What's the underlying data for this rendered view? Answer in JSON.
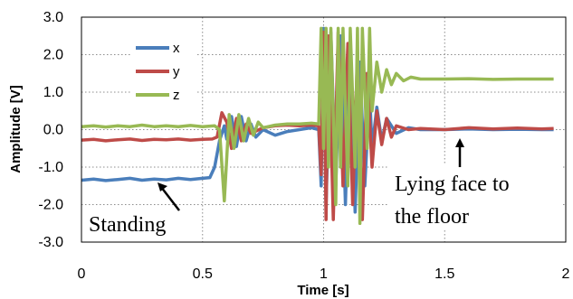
{
  "chart_data": {
    "type": "line",
    "title": "",
    "xlabel": "Time [s]",
    "ylabel": "Amplitude [V]",
    "xlim": [
      0,
      2
    ],
    "ylim": [
      -3,
      3
    ],
    "x_ticks": [
      "0",
      "0.5",
      "1",
      "1.5",
      "2"
    ],
    "y_ticks": [
      "3.0",
      "2.0",
      "1.0",
      "0.0",
      "-1.0",
      "-2.0",
      "-3.0"
    ],
    "grid": "dotted",
    "legend_position": "top-left",
    "series": [
      {
        "name": "x",
        "color": "#4a7ebb",
        "points": [
          [
            0,
            -1.35
          ],
          [
            0.05,
            -1.32
          ],
          [
            0.1,
            -1.36
          ],
          [
            0.15,
            -1.33
          ],
          [
            0.2,
            -1.3
          ],
          [
            0.25,
            -1.35
          ],
          [
            0.3,
            -1.32
          ],
          [
            0.35,
            -1.34
          ],
          [
            0.4,
            -1.3
          ],
          [
            0.45,
            -1.33
          ],
          [
            0.5,
            -1.3
          ],
          [
            0.53,
            -1.28
          ],
          [
            0.55,
            -1.0
          ],
          [
            0.57,
            -0.3
          ],
          [
            0.59,
            0.1
          ],
          [
            0.6,
            -0.25
          ],
          [
            0.62,
            0.35
          ],
          [
            0.64,
            -0.45
          ],
          [
            0.66,
            0.35
          ],
          [
            0.68,
            -0.3
          ],
          [
            0.7,
            0.15
          ],
          [
            0.72,
            -0.2
          ],
          [
            0.75,
            0.0
          ],
          [
            0.8,
            -0.15
          ],
          [
            0.85,
            -0.05
          ],
          [
            0.9,
            0.0
          ],
          [
            0.95,
            0.05
          ],
          [
            0.98,
            0.0
          ],
          [
            0.99,
            -1.5
          ],
          [
            1.0,
            2.7
          ],
          [
            1.01,
            -2.0
          ],
          [
            1.03,
            2.6
          ],
          [
            1.05,
            -1.5
          ],
          [
            1.07,
            2.5
          ],
          [
            1.09,
            -2.0
          ],
          [
            1.11,
            2.4
          ],
          [
            1.13,
            -2.2
          ],
          [
            1.15,
            1.8
          ],
          [
            1.17,
            -1.5
          ],
          [
            1.19,
            1.0
          ],
          [
            1.2,
            -0.5
          ],
          [
            1.22,
            0.6
          ],
          [
            1.24,
            -0.3
          ],
          [
            1.26,
            0.3
          ],
          [
            1.3,
            -0.1
          ],
          [
            1.35,
            0.05
          ],
          [
            1.4,
            0.0
          ],
          [
            1.5,
            0.0
          ],
          [
            1.6,
            0.02
          ],
          [
            1.7,
            0.0
          ],
          [
            1.8,
            0.01
          ],
          [
            1.9,
            0.0
          ],
          [
            1.95,
            0.0
          ]
        ]
      },
      {
        "name": "y",
        "color": "#be4b48",
        "points": [
          [
            0,
            -0.28
          ],
          [
            0.05,
            -0.26
          ],
          [
            0.1,
            -0.3
          ],
          [
            0.15,
            -0.27
          ],
          [
            0.2,
            -0.25
          ],
          [
            0.25,
            -0.29
          ],
          [
            0.3,
            -0.26
          ],
          [
            0.35,
            -0.27
          ],
          [
            0.4,
            -0.25
          ],
          [
            0.45,
            -0.28
          ],
          [
            0.5,
            -0.26
          ],
          [
            0.54,
            -0.25
          ],
          [
            0.56,
            -0.2
          ],
          [
            0.58,
            0.45
          ],
          [
            0.6,
            0.2
          ],
          [
            0.62,
            -0.5
          ],
          [
            0.64,
            0.3
          ],
          [
            0.66,
            -0.3
          ],
          [
            0.68,
            0.15
          ],
          [
            0.7,
            -0.1
          ],
          [
            0.75,
            0.05
          ],
          [
            0.8,
            0.1
          ],
          [
            0.85,
            0.12
          ],
          [
            0.9,
            0.1
          ],
          [
            0.95,
            0.12
          ],
          [
            0.98,
            0.1
          ],
          [
            0.99,
            -1.2
          ],
          [
            1.0,
            2.6
          ],
          [
            1.01,
            -2.4
          ],
          [
            1.02,
            2.5
          ],
          [
            1.04,
            -2.4
          ],
          [
            1.06,
            2.6
          ],
          [
            1.08,
            -1.5
          ],
          [
            1.1,
            2.3
          ],
          [
            1.12,
            -2.0
          ],
          [
            1.14,
            2.0
          ],
          [
            1.16,
            -2.4
          ],
          [
            1.18,
            1.5
          ],
          [
            1.2,
            -1.0
          ],
          [
            1.22,
            0.5
          ],
          [
            1.24,
            -0.4
          ],
          [
            1.26,
            0.3
          ],
          [
            1.28,
            -0.2
          ],
          [
            1.3,
            0.1
          ],
          [
            1.35,
            0.0
          ],
          [
            1.4,
            0.03
          ],
          [
            1.5,
            0.0
          ],
          [
            1.6,
            0.05
          ],
          [
            1.7,
            0.02
          ],
          [
            1.8,
            0.04
          ],
          [
            1.9,
            0.02
          ],
          [
            1.95,
            0.03
          ]
        ]
      },
      {
        "name": "z",
        "color": "#98b954",
        "points": [
          [
            0,
            0.08
          ],
          [
            0.05,
            0.1
          ],
          [
            0.1,
            0.07
          ],
          [
            0.15,
            0.1
          ],
          [
            0.2,
            0.08
          ],
          [
            0.25,
            0.12
          ],
          [
            0.3,
            0.08
          ],
          [
            0.35,
            0.1
          ],
          [
            0.4,
            0.08
          ],
          [
            0.45,
            0.11
          ],
          [
            0.5,
            0.08
          ],
          [
            0.55,
            0.1
          ],
          [
            0.57,
            0.0
          ],
          [
            0.59,
            -1.9
          ],
          [
            0.61,
            0.4
          ],
          [
            0.63,
            -0.5
          ],
          [
            0.65,
            0.4
          ],
          [
            0.67,
            -0.3
          ],
          [
            0.69,
            0.3
          ],
          [
            0.71,
            -0.15
          ],
          [
            0.73,
            0.2
          ],
          [
            0.75,
            0.05
          ],
          [
            0.8,
            0.12
          ],
          [
            0.85,
            0.15
          ],
          [
            0.9,
            0.15
          ],
          [
            0.95,
            0.17
          ],
          [
            0.98,
            0.15
          ],
          [
            0.99,
            2.7
          ],
          [
            1.0,
            -0.5
          ],
          [
            1.01,
            2.7
          ],
          [
            1.02,
            -1.0
          ],
          [
            1.03,
            2.7
          ],
          [
            1.05,
            -2.0
          ],
          [
            1.06,
            2.7
          ],
          [
            1.07,
            -1.0
          ],
          [
            1.08,
            2.7
          ],
          [
            1.1,
            -1.5
          ],
          [
            1.11,
            2.7
          ],
          [
            1.13,
            -1.0
          ],
          [
            1.14,
            2.7
          ],
          [
            1.15,
            -2.5
          ],
          [
            1.16,
            2.7
          ],
          [
            1.18,
            -0.5
          ],
          [
            1.19,
            2.7
          ],
          [
            1.2,
            0.5
          ],
          [
            1.22,
            1.8
          ],
          [
            1.24,
            1.0
          ],
          [
            1.26,
            1.6
          ],
          [
            1.28,
            1.2
          ],
          [
            1.3,
            1.5
          ],
          [
            1.33,
            1.3
          ],
          [
            1.36,
            1.4
          ],
          [
            1.4,
            1.35
          ],
          [
            1.5,
            1.35
          ],
          [
            1.6,
            1.36
          ],
          [
            1.7,
            1.34
          ],
          [
            1.8,
            1.35
          ],
          [
            1.9,
            1.35
          ],
          [
            1.95,
            1.35
          ]
        ]
      }
    ],
    "annotations": [
      {
        "id": "standing",
        "text": "Standing",
        "arrow_to": [
          0.42,
          -1.5
        ]
      },
      {
        "id": "lying1",
        "text": "Lying face to",
        "arrow_to": [
          1.58,
          -0.1
        ]
      },
      {
        "id": "lying2",
        "text": "the floor"
      }
    ]
  }
}
